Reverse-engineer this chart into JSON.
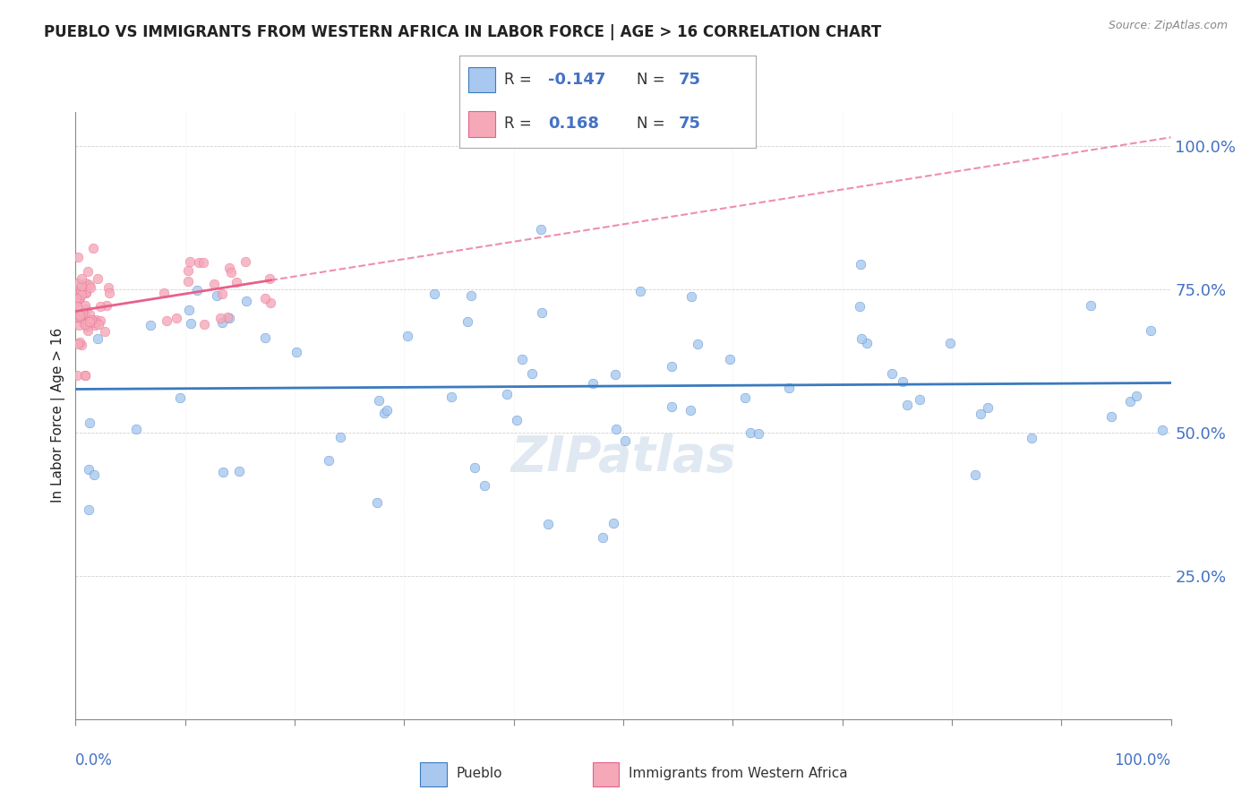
{
  "title": "PUEBLO VS IMMIGRANTS FROM WESTERN AFRICA IN LABOR FORCE | AGE > 16 CORRELATION CHART",
  "source": "Source: ZipAtlas.com",
  "ylabel": "In Labor Force | Age > 16",
  "ytick_vals": [
    0.25,
    0.5,
    0.75,
    1.0
  ],
  "legend_pueblo": "Pueblo",
  "legend_immigrants": "Immigrants from Western Africa",
  "r_pueblo": "-0.147",
  "n_pueblo": "75",
  "r_immigrants": "0.168",
  "n_immigrants": "75",
  "pueblo_color": "#a8c8f0",
  "immigrant_color": "#f4a8b8",
  "pueblo_line_color": "#3a7abf",
  "immigrant_line_color": "#e8608a",
  "background_color": "#ffffff",
  "title_fontsize": 12,
  "axis_label_color": "#4472c4",
  "text_color": "#222222",
  "source_color": "#888888",
  "grid_color": "#cccccc"
}
